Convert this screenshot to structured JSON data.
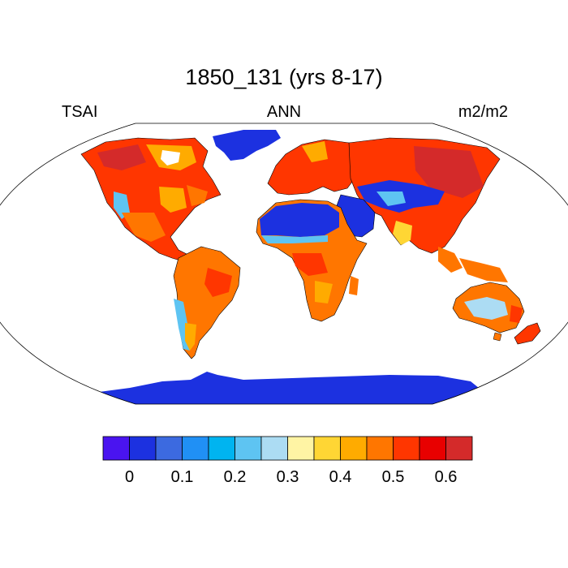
{
  "title": "1850_131 (yrs 8-17)",
  "left_label": "TSAI",
  "center_label": "ANN",
  "right_label": "m2/m2",
  "colorbar": {
    "colors": [
      "#4a14f0",
      "#1c31e0",
      "#3c6ae0",
      "#2090f5",
      "#00b4f0",
      "#5ec4f2",
      "#acdcf3",
      "#fff4a4",
      "#ffd634",
      "#ffab00",
      "#ff7600",
      "#ff3600",
      "#e80000",
      "#d42a2a"
    ],
    "ticks": [
      "0",
      "0.1",
      "0.2",
      "0.3",
      "0.4",
      "0.5",
      "0.6"
    ]
  }
}
